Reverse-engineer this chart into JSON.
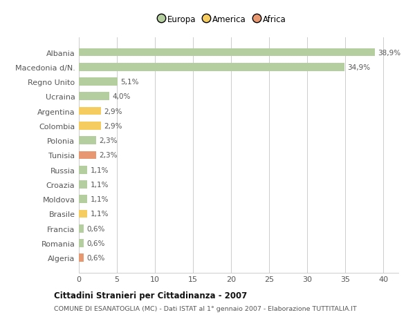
{
  "categories": [
    "Albania",
    "Macedonia d/N.",
    "Regno Unito",
    "Ucraina",
    "Argentina",
    "Colombia",
    "Polonia",
    "Tunisia",
    "Russia",
    "Croazia",
    "Moldova",
    "Brasile",
    "Francia",
    "Romania",
    "Algeria"
  ],
  "values": [
    38.9,
    34.9,
    5.1,
    4.0,
    2.9,
    2.9,
    2.3,
    2.3,
    1.1,
    1.1,
    1.1,
    1.1,
    0.6,
    0.6,
    0.6
  ],
  "labels": [
    "38,9%",
    "34,9%",
    "5,1%",
    "4,0%",
    "2,9%",
    "2,9%",
    "2,3%",
    "2,3%",
    "1,1%",
    "1,1%",
    "1,1%",
    "1,1%",
    "0,6%",
    "0,6%",
    "0,6%"
  ],
  "colors": [
    "#b5ceA0",
    "#b5ceA0",
    "#b5ceA0",
    "#b5ceA0",
    "#f5cc60",
    "#f5cc60",
    "#b5ceA0",
    "#e89870",
    "#b5ceA0",
    "#b5ceA0",
    "#b5ceA0",
    "#f5cc60",
    "#b5ceA0",
    "#b5ceA0",
    "#e89870"
  ],
  "legend_labels": [
    "Europa",
    "America",
    "Africa"
  ],
  "legend_colors": [
    "#b5ceA0",
    "#f5cc60",
    "#e89870"
  ],
  "title": "Cittadini Stranieri per Cittadinanza - 2007",
  "subtitle": "COMUNE DI ESANATOGLIA (MC) - Dati ISTAT al 1° gennaio 2007 - Elaborazione TUTTITALIA.IT",
  "xlim": [
    0,
    42
  ],
  "xticks": [
    0,
    5,
    10,
    15,
    20,
    25,
    30,
    35,
    40
  ],
  "bg_color": "#ffffff",
  "grid_color": "#cccccc",
  "bar_height": 0.55
}
